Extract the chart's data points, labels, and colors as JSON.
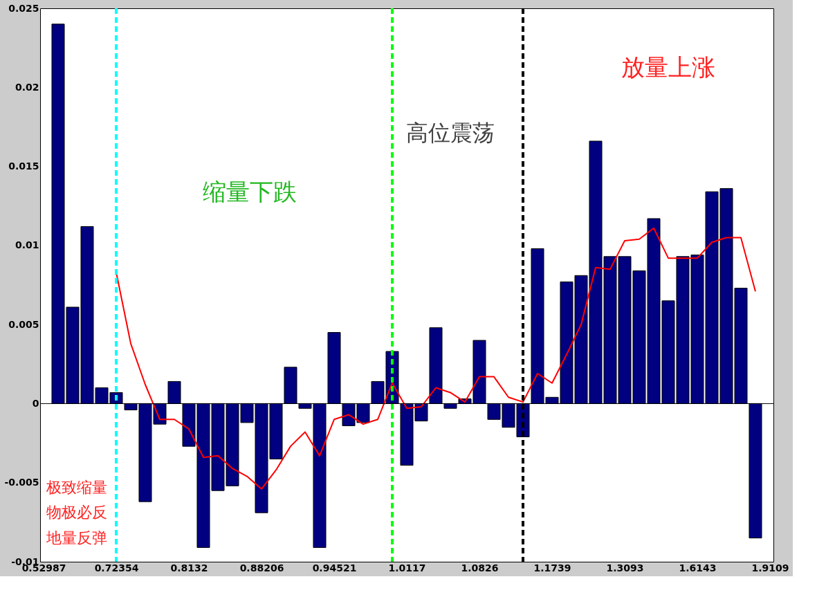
{
  "chart_data": {
    "type": "bar",
    "categories": [
      "0.52987",
      null,
      null,
      null,
      null,
      "0.72354",
      null,
      null,
      null,
      null,
      "0.8132",
      null,
      null,
      null,
      null,
      "0.88206",
      null,
      null,
      null,
      null,
      "0.94521",
      null,
      null,
      null,
      null,
      "1.0117",
      null,
      null,
      null,
      null,
      "1.0826",
      null,
      null,
      null,
      null,
      "1.1739",
      null,
      null,
      null,
      null,
      "1.3093",
      null,
      null,
      null,
      null,
      "1.6143",
      null,
      null,
      null,
      null,
      "1.9109"
    ],
    "series": [
      {
        "color": "#000080",
        "values": [
          null,
          0.024,
          0.0061,
          0.0112,
          0.001,
          0.0007,
          -0.0004,
          -0.0062,
          -0.0013,
          0.0014,
          -0.0027,
          -0.0091,
          -0.0055,
          -0.0052,
          -0.0012,
          -0.0069,
          -0.0035,
          0.0023,
          -0.0003,
          -0.0091,
          0.0045,
          -0.0014,
          -0.0012,
          0.0014,
          0.0033,
          -0.0039,
          -0.0011,
          0.0048,
          -0.0003,
          0.0003,
          0.004,
          -0.001,
          -0.0015,
          -0.0021,
          0.0098,
          0.0004,
          0.0077,
          0.0081,
          0.0166,
          0.0093,
          0.0093,
          0.0084,
          0.0117,
          0.0065,
          0.0093,
          0.0094,
          0.0134,
          0.0136,
          0.0073,
          -0.0085,
          null
        ]
      },
      {
        "type": "line",
        "color": "#ff0000",
        "values": [
          null,
          null,
          null,
          null,
          null,
          0.0083,
          0.0038,
          0.0012,
          -0.001,
          -0.001,
          -0.0016,
          -0.0034,
          -0.0033,
          -0.0041,
          -0.0046,
          -0.0054,
          -0.0042,
          -0.0027,
          -0.0018,
          -0.0033,
          -0.001,
          -0.0007,
          -0.0013,
          -0.001,
          0.0013,
          -0.0003,
          -0.0002,
          0.001,
          0.0007,
          0.0001,
          0.0017,
          0.0017,
          0.0004,
          0.0001,
          0.0019,
          0.0013,
          0.0031,
          0.005,
          0.0086,
          0.0085,
          0.0103,
          0.0104,
          0.0111,
          0.0092,
          0.0092,
          0.0092,
          0.0102,
          0.0105,
          0.0105,
          0.0071,
          null
        ]
      }
    ],
    "ylim": [
      -0.01,
      0.025
    ],
    "yticks": [
      -0.01,
      -0.005,
      0,
      0.005,
      0.01,
      0.015,
      0.02,
      0.025
    ],
    "ref_lines": [
      {
        "axis": "x",
        "value": "0.72354",
        "color": "#00ffff",
        "line_style": "dashed"
      }
    ],
    "annotations": [
      "缩量下跌",
      "高位震荡",
      "放量上涨",
      "极致缩量",
      "物极必反",
      "地量反弹"
    ],
    "grid": false,
    "marker": "none"
  }
}
